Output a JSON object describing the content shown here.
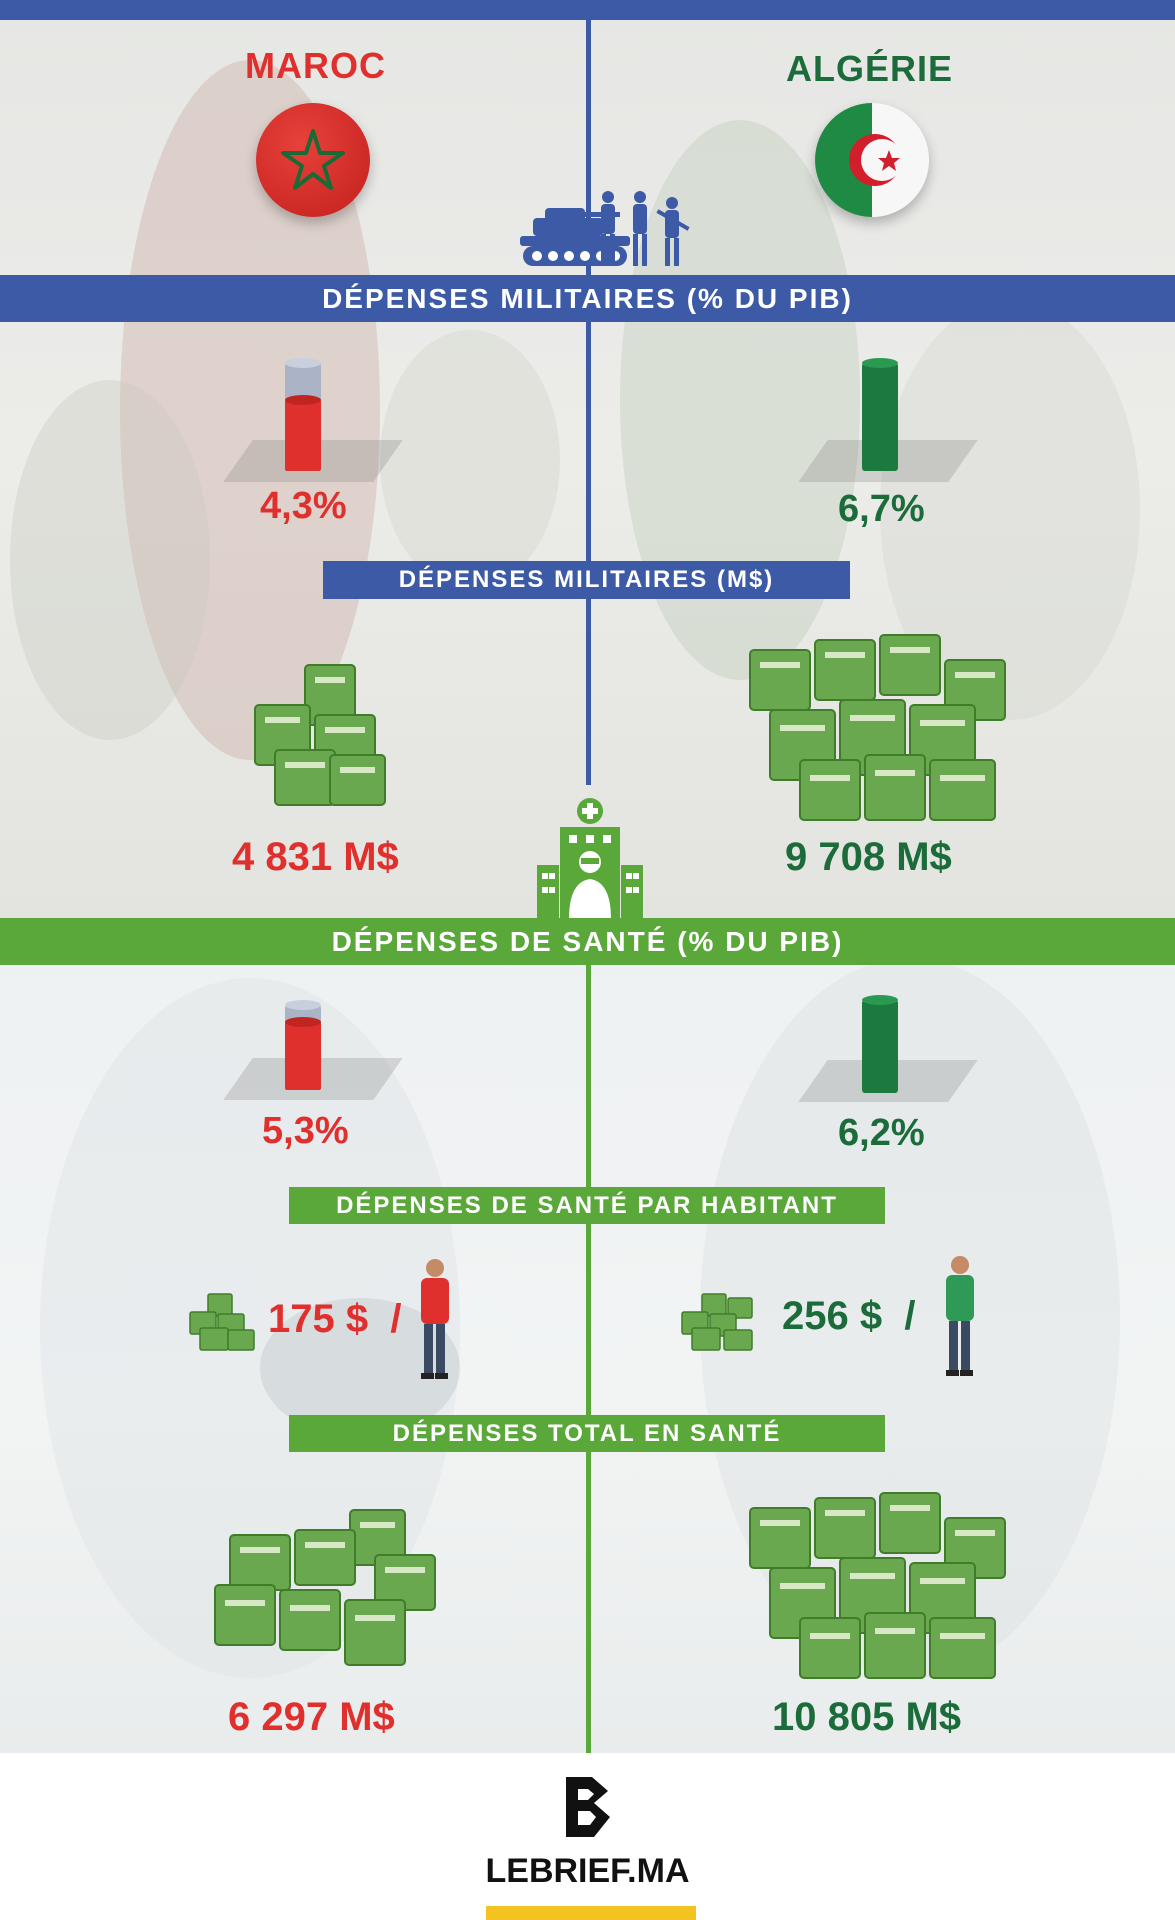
{
  "header": {
    "left_country": "MAROC",
    "right_country": "ALGÉRIE"
  },
  "military": {
    "banner": "DÉPENSES MILITAIRES (% DU PIB)",
    "maroc_pct": "4,3%",
    "algerie_pct": "6,7%",
    "sub_banner": "DÉPENSES MILITAIRES (M$)",
    "maroc_amount": "4 831 M$",
    "algerie_amount": "9 708 M$"
  },
  "health": {
    "banner": "DÉPENSES DE SANTÉ (% DU PIB)",
    "maroc_pct": "5,3%",
    "algerie_pct": "6,2%",
    "percap_banner": "DÉPENSES DE SANTÉ PAR HABITANT",
    "maroc_percap": "175 $  /",
    "algerie_percap": "256 $  /",
    "total_banner": "DÉPENSES TOTAL EN SANTÉ",
    "maroc_total": "6 297 M$",
    "algerie_total": "10 805 M$"
  },
  "footer": {
    "brand": "LEBRIEF.MA"
  },
  "colors": {
    "blue": "#3c5aa6",
    "green_banner": "#5aa83a",
    "red": "#e0302e",
    "dark_green": "#1c6b3a",
    "logo_yellow": "#f3c421"
  },
  "icons": [
    "tank-soldiers-icon",
    "morocco-flag-icon",
    "algeria-flag-icon",
    "hospital-doctor-icon",
    "money-stack-icon",
    "person-icon",
    "lebrief-logo-icon"
  ]
}
